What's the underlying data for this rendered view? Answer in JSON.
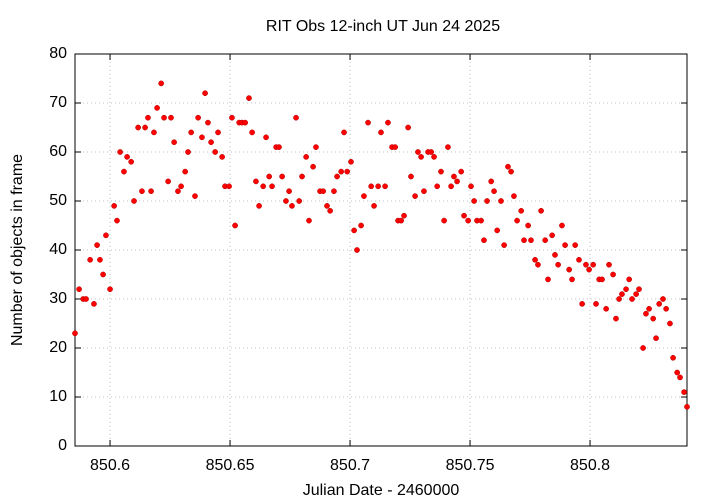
{
  "chart_data": {
    "type": "scatter",
    "title": "RIT Obs 12-inch UT Jun 24 2025",
    "x_label": "Julian Date - 2460000",
    "y_label": "Number of objects in frame",
    "xlim": [
      850.5854,
      850.8404
    ],
    "ylim": [
      0,
      80
    ],
    "xticks": [
      850.6,
      850.65,
      850.7,
      850.75,
      850.8
    ],
    "yticks": [
      0,
      10,
      20,
      30,
      40,
      50,
      60,
      70,
      80
    ],
    "grid": true,
    "series": [
      {
        "color": "#ff0000",
        "x": [
          850.5854,
          850.5871,
          850.5888,
          850.59,
          850.5917,
          850.5933,
          850.5946,
          850.5958,
          850.5971,
          850.5983,
          850.6,
          850.6017,
          850.6029,
          850.6042,
          850.6058,
          850.6071,
          850.6088,
          850.61,
          850.6117,
          850.6133,
          850.6146,
          850.6158,
          850.6171,
          850.6183,
          850.6196,
          850.6213,
          850.6225,
          850.6242,
          850.6254,
          850.6267,
          850.6283,
          850.6296,
          850.6313,
          850.6325,
          850.6338,
          850.6354,
          850.6367,
          850.6383,
          850.6396,
          850.6408,
          850.6421,
          850.6438,
          850.645,
          850.6467,
          850.6479,
          850.6496,
          850.6508,
          850.6521,
          850.6538,
          850.655,
          850.6563,
          850.6579,
          850.6592,
          850.6608,
          850.6621,
          850.6638,
          850.665,
          850.6663,
          850.6675,
          850.6692,
          850.6704,
          850.6717,
          850.6733,
          850.6746,
          850.6758,
          850.6775,
          850.6788,
          850.68,
          850.6817,
          850.6829,
          850.6846,
          850.6858,
          850.6875,
          850.6888,
          850.6904,
          850.6917,
          850.6933,
          850.6946,
          850.6963,
          850.6975,
          850.6988,
          850.7004,
          850.7017,
          850.7029,
          850.7046,
          850.7058,
          850.7075,
          850.7088,
          850.71,
          850.7117,
          850.7129,
          850.7146,
          850.7158,
          850.7175,
          850.7188,
          850.72,
          850.7213,
          850.7225,
          850.7242,
          850.7254,
          850.7271,
          850.7283,
          850.7296,
          850.7308,
          850.7325,
          850.7338,
          850.735,
          850.7363,
          850.7379,
          850.7392,
          850.7408,
          850.7421,
          850.7433,
          850.7446,
          850.7463,
          850.7475,
          850.7492,
          850.7504,
          850.7517,
          850.7529,
          850.7546,
          850.7558,
          850.7571,
          850.7588,
          850.76,
          850.7613,
          850.7629,
          850.7642,
          850.7658,
          850.7671,
          850.7683,
          850.7696,
          850.7713,
          850.7725,
          850.7742,
          850.7754,
          850.7771,
          850.7783,
          850.7796,
          850.7813,
          850.7825,
          850.7842,
          850.7854,
          850.7867,
          850.7883,
          850.7896,
          850.7913,
          850.7925,
          850.7938,
          850.7954,
          850.7967,
          850.7983,
          850.7996,
          850.8013,
          850.8025,
          850.8038,
          850.805,
          850.8067,
          850.8079,
          850.8096,
          850.8108,
          850.8121,
          850.8133,
          850.815,
          850.8163,
          850.8175,
          850.8192,
          850.8204,
          850.8221,
          850.8233,
          850.8246,
          850.8263,
          850.8275,
          850.8288,
          850.8304,
          850.8317,
          850.8333,
          850.8346,
          850.8363,
          850.8375,
          850.8392,
          850.8404
        ],
        "values": [
          23,
          32,
          30,
          30,
          38,
          29,
          41,
          38,
          35,
          43,
          32,
          49,
          46,
          60,
          56,
          59,
          58,
          50,
          65,
          52,
          65,
          67,
          52,
          64,
          69,
          74,
          67,
          54,
          67,
          62,
          52,
          53,
          56,
          60,
          64,
          51,
          67,
          63,
          72,
          66,
          62,
          60,
          64,
          59,
          53,
          53,
          67,
          45,
          66,
          66,
          66,
          71,
          64,
          54,
          49,
          53,
          63,
          55,
          53,
          61,
          61,
          55,
          50,
          52,
          49,
          67,
          50,
          55,
          59,
          46,
          57,
          61,
          52,
          52,
          49,
          48,
          52,
          55,
          56,
          64,
          56,
          58,
          44,
          40,
          45,
          51,
          66,
          53,
          49,
          53,
          64,
          53,
          66,
          61,
          61,
          46,
          46,
          47,
          65,
          55,
          51,
          60,
          59,
          52,
          60,
          60,
          59,
          53,
          56,
          46,
          61,
          53,
          55,
          54,
          56,
          47,
          46,
          53,
          50,
          46,
          46,
          42,
          50,
          54,
          52,
          44,
          50,
          41,
          57,
          56,
          51,
          46,
          48,
          42,
          45,
          42,
          38,
          37,
          48,
          42,
          34,
          43,
          39,
          37,
          45,
          41,
          36,
          34,
          41,
          38,
          29,
          37,
          36,
          37,
          29,
          34,
          34,
          28,
          37,
          35,
          26,
          30,
          31,
          32,
          34,
          30,
          31,
          32,
          20,
          27,
          28,
          26,
          22,
          29,
          30,
          28,
          25,
          18,
          15,
          14,
          11,
          8
        ]
      }
    ]
  }
}
